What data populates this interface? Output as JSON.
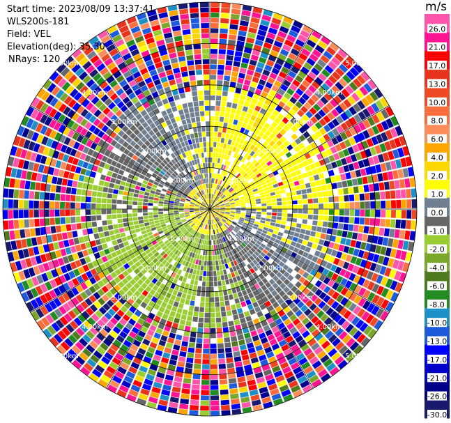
{
  "header": {
    "start_time": "Start time: 2023/08/09 13:37:41",
    "instrument": "WLS200s-181",
    "field": "Field: VEL",
    "elevation": "Elevation(deg): 35.30",
    "nrays": "NRays: 120"
  },
  "chart_data": {
    "type": "heatmap",
    "projection": "polar-ppi",
    "field": "VEL",
    "units": "m/s",
    "n_rays": 120,
    "elevation_deg": 35.3,
    "range_rings_km": [
      1.0,
      2.0,
      3.0,
      4.0,
      5.0
    ],
    "ring_labels": [
      "1.00km",
      "2.00km",
      "3.00km",
      "4.00km",
      "5.00km"
    ],
    "spokes_deg": [
      0,
      30,
      60,
      90,
      120,
      150,
      180,
      210,
      240,
      270,
      300,
      330
    ],
    "grid": true,
    "max_range_km": 5.0,
    "colorbar": {
      "unit": "m/s",
      "tick_labels": [
        "26.0",
        "21.0",
        "17.0",
        "13.0",
        "10.0",
        "8.0",
        "6.0",
        "4.0",
        "2.0",
        "1.0",
        "0.0",
        "-1.0",
        "-2.0",
        "-4.0",
        "-6.0",
        "-8.0",
        "-10.0",
        "-13.0",
        "-17.0",
        "-21.0",
        "-26.0",
        "-30.0"
      ],
      "bins": [
        {
          "lo": 26.0,
          "hi": 30.0,
          "color": "#ff55aa"
        },
        {
          "lo": 21.0,
          "hi": 26.0,
          "color": "#ff1493"
        },
        {
          "lo": 17.0,
          "hi": 21.0,
          "color": "#ff0000"
        },
        {
          "lo": 13.0,
          "hi": 17.0,
          "color": "#e8341c"
        },
        {
          "lo": 10.0,
          "hi": 13.0,
          "color": "#f04a24"
        },
        {
          "lo": 8.0,
          "hi": 10.0,
          "color": "#fa6d3c"
        },
        {
          "lo": 6.0,
          "hi": 8.0,
          "color": "#fc8c5a"
        },
        {
          "lo": 4.0,
          "hi": 6.0,
          "color": "#ffa500"
        },
        {
          "lo": 2.0,
          "hi": 4.0,
          "color": "#ffd700"
        },
        {
          "lo": 1.0,
          "hi": 2.0,
          "color": "#ffff00"
        },
        {
          "lo": 0.0,
          "hi": 1.0,
          "color": "#708090"
        },
        {
          "lo": -1.0,
          "hi": 0.0,
          "color": "#666666"
        },
        {
          "lo": -2.0,
          "hi": -1.0,
          "color": "#9acd32"
        },
        {
          "lo": -4.0,
          "hi": -2.0,
          "color": "#7aa62a"
        },
        {
          "lo": -6.0,
          "hi": -4.0,
          "color": "#4f7a1e"
        },
        {
          "lo": -8.0,
          "hi": -6.0,
          "color": "#228b22"
        },
        {
          "lo": -10.0,
          "hi": -8.0,
          "color": "#1e90c8"
        },
        {
          "lo": -13.0,
          "hi": -10.0,
          "color": "#1e5adc"
        },
        {
          "lo": -17.0,
          "hi": -13.0,
          "color": "#0000ff"
        },
        {
          "lo": -21.0,
          "hi": -17.0,
          "color": "#0000c8"
        },
        {
          "lo": -26.0,
          "hi": -21.0,
          "color": "#00008b"
        },
        {
          "lo": -30.0,
          "hi": -26.0,
          "color": "#191970"
        }
      ]
    },
    "velocity_pattern": [
      {
        "range_km": [
          0.0,
          1.3
        ],
        "dominant": "0.0 to 2.0",
        "note": "yellow/gray inner core"
      },
      {
        "range_km": [
          1.3,
          3.2
        ],
        "dominant": "-2.0 to 2.0",
        "note": "gray with yellow NE and green SW"
      },
      {
        "range_km": [
          3.2,
          5.0
        ],
        "dominant": "all bins",
        "note": "noise"
      }
    ]
  }
}
